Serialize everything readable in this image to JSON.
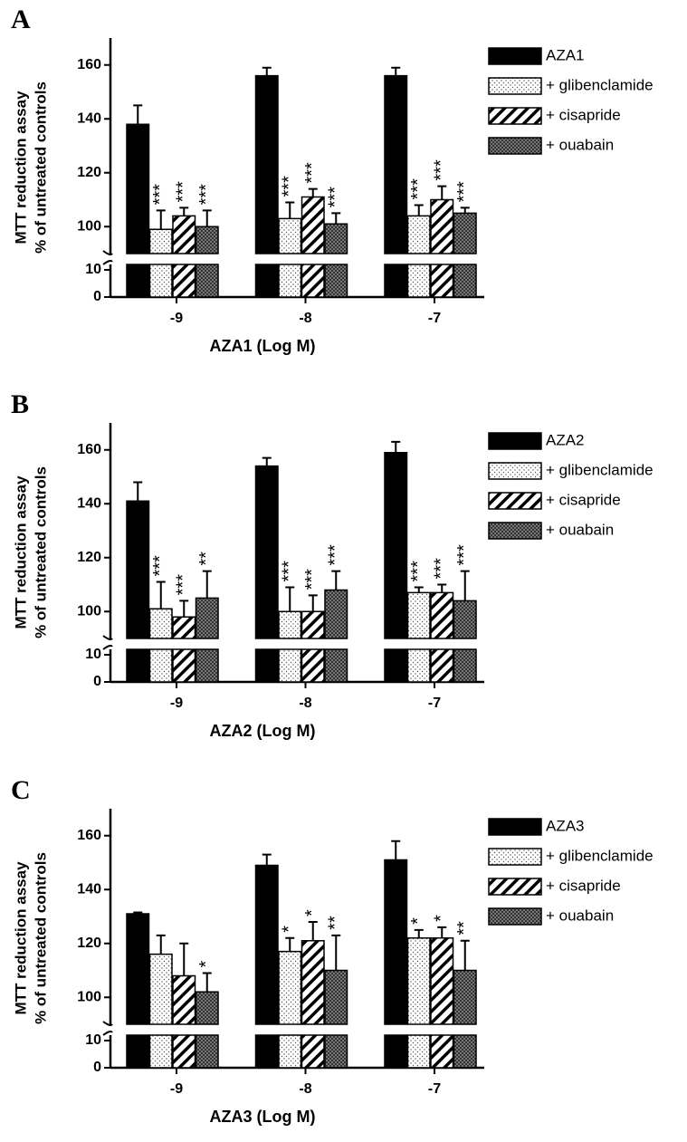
{
  "chart_data": [
    {
      "type": "bar",
      "panel_label": "A",
      "xlabel": "AZA1 (Log M)",
      "ylabel": [
        "MTT reduction assay",
        "% of untreated controls"
      ],
      "categories": [
        "-9",
        "-8",
        "-7"
      ],
      "ylim": [
        0,
        170
      ],
      "ybreak": [
        12,
        90
      ],
      "yticks": [
        0,
        10,
        100,
        120,
        140,
        160
      ],
      "series": [
        {
          "name": "AZA1",
          "color": "#000000",
          "pattern": "solid",
          "values": [
            138,
            156,
            156
          ],
          "errors": [
            7,
            3,
            3
          ],
          "annotations": [
            null,
            null,
            null
          ]
        },
        {
          "name": "+ glibenclamide",
          "color": "#000000",
          "pattern": "dots",
          "values": [
            99,
            103,
            104
          ],
          "errors": [
            7,
            6,
            4
          ],
          "annotations": [
            "***",
            "***",
            "***"
          ]
        },
        {
          "name": "+ cisapride",
          "color": "#000000",
          "pattern": "diagonal",
          "values": [
            104,
            111,
            110
          ],
          "errors": [
            3,
            3,
            5
          ],
          "annotations": [
            "***",
            "***",
            "***"
          ]
        },
        {
          "name": "+ ouabain",
          "color": "#000000",
          "pattern": "crosshatch",
          "values": [
            100,
            101,
            105
          ],
          "errors": [
            6,
            4,
            2
          ],
          "annotations": [
            "***",
            "***",
            "***"
          ]
        }
      ]
    },
    {
      "type": "bar",
      "panel_label": "B",
      "xlabel": "AZA2 (Log M)",
      "ylabel": [
        "MTT reduction assay",
        "% of untreated controls"
      ],
      "categories": [
        "-9",
        "-8",
        "-7"
      ],
      "ylim": [
        0,
        170
      ],
      "ybreak": [
        12,
        90
      ],
      "yticks": [
        0,
        10,
        100,
        120,
        140,
        160
      ],
      "series": [
        {
          "name": "AZA2",
          "color": "#000000",
          "pattern": "solid",
          "values": [
            141,
            154,
            159
          ],
          "errors": [
            7,
            3,
            4
          ],
          "annotations": [
            null,
            null,
            null
          ]
        },
        {
          "name": "+ glibenclamide",
          "color": "#000000",
          "pattern": "dots",
          "values": [
            101,
            100,
            107
          ],
          "errors": [
            10,
            9,
            2
          ],
          "annotations": [
            "***",
            "***",
            "***"
          ]
        },
        {
          "name": "+ cisapride",
          "color": "#000000",
          "pattern": "diagonal",
          "values": [
            98,
            100,
            107
          ],
          "errors": [
            6,
            6,
            3
          ],
          "annotations": [
            "***",
            "***",
            "***"
          ]
        },
        {
          "name": "+ ouabain",
          "color": "#000000",
          "pattern": "crosshatch",
          "values": [
            105,
            108,
            104
          ],
          "errors": [
            10,
            7,
            11
          ],
          "annotations": [
            "**",
            "***",
            "***"
          ]
        }
      ]
    },
    {
      "type": "bar",
      "panel_label": "C",
      "xlabel": "AZA3 (Log M)",
      "ylabel": [
        "MTT reduction assay",
        "% of untreated controls"
      ],
      "categories": [
        "-9",
        "-8",
        "-7"
      ],
      "ylim": [
        0,
        170
      ],
      "ybreak": [
        12,
        90
      ],
      "yticks": [
        0,
        10,
        100,
        120,
        140,
        160
      ],
      "series": [
        {
          "name": "AZA3",
          "color": "#000000",
          "pattern": "solid",
          "values": [
            131,
            149,
            151
          ],
          "errors": [
            0.5,
            4,
            7
          ],
          "annotations": [
            null,
            null,
            null
          ]
        },
        {
          "name": "+ glibenclamide",
          "color": "#000000",
          "pattern": "dots",
          "values": [
            116,
            117,
            122
          ],
          "errors": [
            7,
            5,
            3
          ],
          "annotations": [
            null,
            "*",
            "*"
          ]
        },
        {
          "name": "+ cisapride",
          "color": "#000000",
          "pattern": "diagonal",
          "values": [
            108,
            121,
            122
          ],
          "errors": [
            12,
            7,
            4
          ],
          "annotations": [
            null,
            "*",
            "*"
          ]
        },
        {
          "name": "+ ouabain",
          "color": "#000000",
          "pattern": "crosshatch",
          "values": [
            102,
            110,
            110
          ],
          "errors": [
            7,
            13,
            11
          ],
          "annotations": [
            "*",
            "**",
            "**"
          ]
        }
      ]
    }
  ]
}
